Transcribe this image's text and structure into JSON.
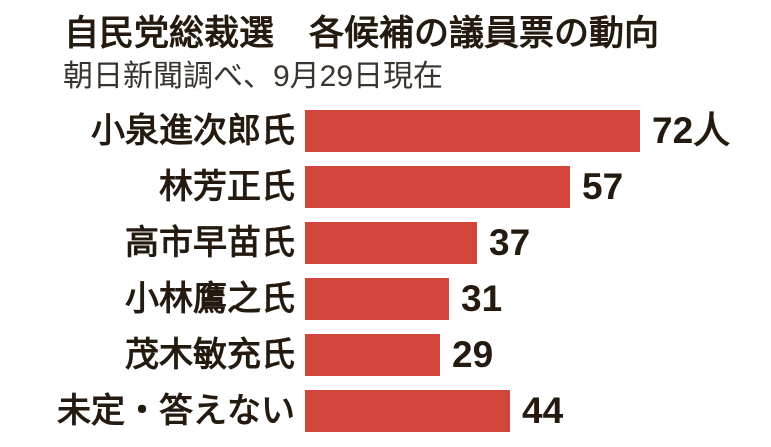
{
  "header": {
    "title": "自民党総裁選　各候補の議員票の動向",
    "subtitle": "朝日新聞調べ、9月29日現在"
  },
  "colors": {
    "bar": "#d1453a",
    "title_text": "#241a10",
    "subtitle_text": "#39342e",
    "background": "#ffffff"
  },
  "chart_data": {
    "type": "bar",
    "orientation": "horizontal",
    "title": "自民党総裁選　各候補の議員票の動向",
    "subtitle": "朝日新聞調べ、9月29日現在",
    "unit": "人",
    "categories": [
      "小泉進次郎氏",
      "林芳正氏",
      "高市早苗氏",
      "小林鷹之氏",
      "茂木敏充氏",
      "未定・答えない"
    ],
    "values": [
      72,
      57,
      37,
      31,
      29,
      44
    ],
    "value_labels": [
      "72人",
      "57",
      "37",
      "31",
      "29",
      "44"
    ],
    "xlim": [
      0,
      80
    ],
    "grid": false,
    "legend": false
  }
}
